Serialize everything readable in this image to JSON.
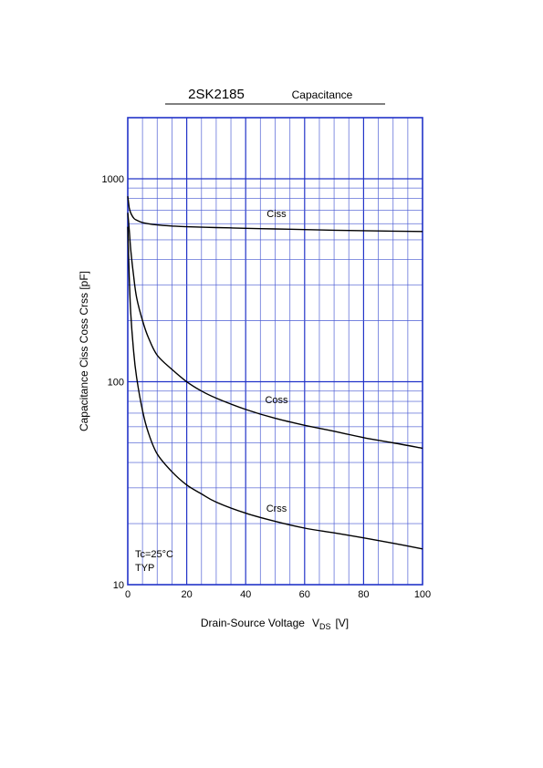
{
  "chart_data": {
    "type": "line",
    "title": "2SK2185",
    "subtitle": "Capacitance",
    "xlabel": "Drain-Source Voltage",
    "xlabel_symbol": "V",
    "xlabel_subscript": "DS",
    "xlabel_unit": "[V]",
    "ylabel": "Capacitance  Ciss  Coss  Crss  [pF]",
    "xlim": [
      0,
      100
    ],
    "ylim": [
      10,
      2000
    ],
    "yscale": "log",
    "grid": true,
    "x_ticks": [
      "0",
      "20",
      "40",
      "60",
      "80",
      "100"
    ],
    "y_ticks": [
      "10",
      "100",
      "1000"
    ],
    "annotation_lines": [
      "Tc=25°C",
      "TYP"
    ],
    "series": [
      {
        "name": "Ciss",
        "x": [
          0,
          0.5,
          1,
          2,
          3,
          5,
          7,
          10,
          15,
          20,
          30,
          40,
          50,
          60,
          70,
          80,
          90,
          100
        ],
        "y": [
          820,
          720,
          680,
          640,
          625,
          608,
          600,
          592,
          585,
          580,
          575,
          570,
          566,
          562,
          558,
          555,
          552,
          550
        ]
      },
      {
        "name": "Coss",
        "x": [
          0,
          0.5,
          1,
          2,
          3,
          5,
          7,
          10,
          15,
          20,
          25,
          30,
          40,
          50,
          60,
          70,
          80,
          90,
          100
        ],
        "y": [
          680,
          560,
          450,
          330,
          260,
          200,
          165,
          135,
          115,
          100,
          90,
          83,
          73,
          66,
          61,
          57,
          53,
          50,
          47
        ]
      },
      {
        "name": "Crss",
        "x": [
          0,
          0.5,
          1,
          2,
          3,
          5,
          7,
          10,
          15,
          20,
          25,
          30,
          40,
          50,
          60,
          70,
          80,
          90,
          100
        ],
        "y": [
          580,
          330,
          220,
          140,
          105,
          72,
          56,
          44,
          36,
          31,
          28,
          25.5,
          22.5,
          20.5,
          19,
          18,
          17,
          16,
          15
        ]
      }
    ]
  }
}
